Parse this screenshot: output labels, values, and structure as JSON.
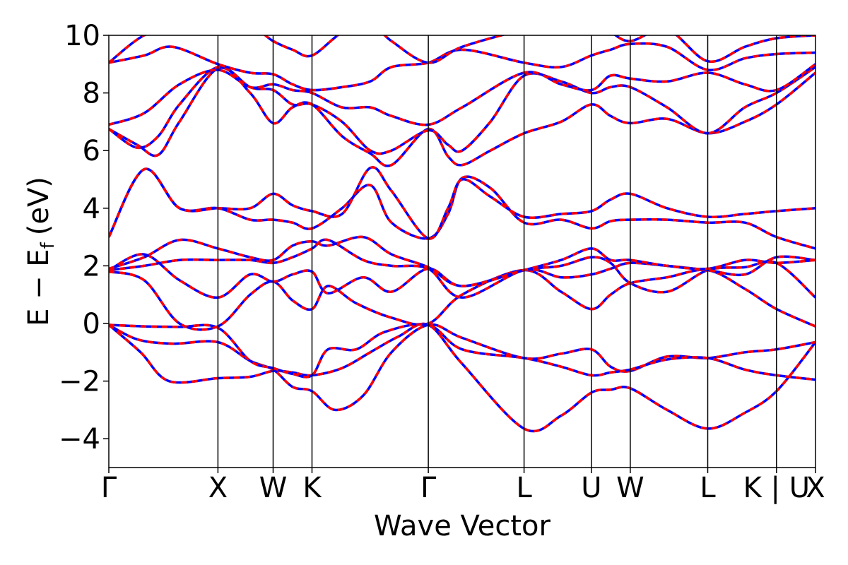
{
  "chart_data": {
    "type": "line",
    "title": "",
    "xlabel": "Wave Vector",
    "ylabel_main": "E − E",
    "ylabel_sub": "f",
    "ylabel_unit": "(eV)",
    "ylim": [
      -5,
      10
    ],
    "yticks": [
      -4,
      -2,
      0,
      2,
      4,
      6,
      8,
      10
    ],
    "ytick_labels": [
      "−4",
      "−2",
      "0",
      "2",
      "4",
      "6",
      "8",
      "10"
    ],
    "xlim": [
      0,
      1
    ],
    "kpoints": [
      {
        "label": "Γ",
        "x": 0.0
      },
      {
        "label": "X",
        "x": 0.1544
      },
      {
        "label": "W",
        "x": 0.2325
      },
      {
        "label": "K",
        "x": 0.2875
      },
      {
        "label": "Γ",
        "x": 0.4521
      },
      {
        "label": "L",
        "x": 0.5876
      },
      {
        "label": "U",
        "x": 0.6829
      },
      {
        "label": "W",
        "x": 0.7379
      },
      {
        "label": "L",
        "x": 0.8475
      },
      {
        "label": "K | U",
        "x": 0.9448
      },
      {
        "label": "X",
        "x": 1.0
      }
    ],
    "grid": false,
    "legend": "none",
    "series_style": [
      {
        "color": "#0000ff",
        "dash": false
      },
      {
        "color": "#ff0000",
        "dash": true
      }
    ],
    "series": [
      {
        "x": [
          0,
          0.045,
          0.085,
          0.1544,
          0.2,
          0.2325,
          0.26,
          0.2875,
          0.33,
          0.37,
          0.41,
          0.4521,
          0.5,
          0.5876,
          0.64,
          0.6829,
          0.71,
          0.7379,
          0.79,
          0.8475,
          0.9,
          0.9448,
          1.0
        ],
        "y": [
          -0.05,
          -1.0,
          -2.0,
          -1.9,
          -1.85,
          -1.65,
          -1.7,
          -1.8,
          -1.55,
          -1.0,
          -0.45,
          -0.05,
          -1.4,
          -3.65,
          -3.2,
          -2.4,
          -2.3,
          -2.25,
          -3.0,
          -3.65,
          -3.1,
          -2.35,
          -0.65
        ]
      },
      {
        "x": [
          0,
          0.04,
          0.09,
          0.1544,
          0.2,
          0.2325,
          0.26,
          0.2875,
          0.32,
          0.36,
          0.4,
          0.4521,
          0.5,
          0.5876,
          0.64,
          0.6829,
          0.71,
          0.7379,
          0.79,
          0.8475,
          0.9,
          0.9448,
          1.0
        ],
        "y": [
          -0.05,
          -0.55,
          -0.7,
          -0.65,
          -1.3,
          -1.6,
          -2.2,
          -2.35,
          -3.0,
          -2.5,
          -1.0,
          -0.05,
          -0.5,
          -1.2,
          -1.05,
          -0.9,
          -1.5,
          -1.65,
          -1.15,
          -1.2,
          -1.0,
          -0.9,
          -0.65
        ]
      },
      {
        "x": [
          0,
          0.05,
          0.1,
          0.1544,
          0.2,
          0.2325,
          0.26,
          0.2875,
          0.31,
          0.35,
          0.39,
          0.4521,
          0.5,
          0.5876,
          0.64,
          0.6829,
          0.71,
          0.7379,
          0.79,
          0.8475,
          0.9,
          0.9448,
          1.0
        ],
        "y": [
          -0.05,
          -0.1,
          -0.12,
          -0.15,
          -1.3,
          -1.55,
          -1.75,
          -1.8,
          -0.9,
          -0.9,
          -0.3,
          -0.05,
          -0.9,
          -1.2,
          -1.5,
          -1.8,
          -1.7,
          -1.6,
          -1.25,
          -1.2,
          -1.6,
          -1.8,
          -1.95
        ]
      },
      {
        "x": [
          0,
          0.05,
          0.1,
          0.1544,
          0.2,
          0.2325,
          0.26,
          0.2875,
          0.31,
          0.35,
          0.4,
          0.4521,
          0.5,
          0.5876,
          0.64,
          0.6829,
          0.71,
          0.7379,
          0.79,
          0.8475,
          0.9,
          0.9448,
          1.0
        ],
        "y": [
          1.8,
          1.5,
          0.0,
          -0.1,
          1.0,
          1.45,
          0.8,
          0.5,
          1.3,
          0.7,
          0.2,
          0.0,
          1.0,
          1.85,
          1.1,
          0.5,
          1.0,
          1.4,
          1.6,
          1.85,
          1.2,
          0.5,
          -0.1
        ]
      },
      {
        "x": [
          0,
          0.05,
          0.1,
          0.1544,
          0.2,
          0.2325,
          0.26,
          0.2875,
          0.31,
          0.36,
          0.4,
          0.4521,
          0.5,
          0.5876,
          0.64,
          0.6829,
          0.71,
          0.7379,
          0.79,
          0.8475,
          0.9,
          0.9448,
          1.0
        ],
        "y": [
          1.85,
          2.4,
          1.5,
          0.9,
          1.7,
          1.45,
          1.7,
          1.8,
          1.05,
          1.6,
          1.1,
          1.9,
          1.3,
          1.85,
          2.0,
          2.3,
          2.1,
          1.4,
          1.1,
          1.85,
          1.95,
          2.1,
          0.9
        ]
      },
      {
        "x": [
          0,
          0.05,
          0.1,
          0.1544,
          0.2,
          0.2325,
          0.26,
          0.2875,
          0.31,
          0.36,
          0.4,
          0.4521,
          0.5,
          0.5876,
          0.64,
          0.6829,
          0.71,
          0.7379,
          0.79,
          0.8475,
          0.9,
          0.9448,
          1.0
        ],
        "y": [
          1.85,
          2.0,
          2.2,
          2.2,
          2.2,
          2.1,
          2.3,
          2.6,
          2.9,
          2.2,
          2.0,
          1.9,
          0.9,
          1.85,
          1.6,
          1.7,
          1.9,
          2.1,
          2.0,
          1.85,
          1.7,
          2.3,
          2.2
        ]
      },
      {
        "x": [
          0,
          0.05,
          0.1,
          0.1544,
          0.2,
          0.2325,
          0.26,
          0.2875,
          0.31,
          0.36,
          0.4,
          0.4521,
          0.5,
          0.5876,
          0.64,
          0.6829,
          0.71,
          0.7379,
          0.79,
          0.8475,
          0.9,
          0.9448,
          1.0
        ],
        "y": [
          1.9,
          2.3,
          2.9,
          2.6,
          2.3,
          2.2,
          2.7,
          2.85,
          2.7,
          3.0,
          2.4,
          1.95,
          1.3,
          1.85,
          2.2,
          2.6,
          2.2,
          2.2,
          2.0,
          1.9,
          2.2,
          2.1,
          2.2
        ]
      },
      {
        "x": [
          0,
          0.05,
          0.1,
          0.1544,
          0.2,
          0.2325,
          0.26,
          0.2875,
          0.33,
          0.37,
          0.4,
          0.4521,
          0.48,
          0.5,
          0.54,
          0.5876,
          0.64,
          0.6829,
          0.71,
          0.7379,
          0.79,
          0.8475,
          0.9,
          0.9448,
          1.0
        ],
        "y": [
          3.0,
          5.35,
          4.0,
          4.0,
          3.6,
          3.6,
          3.5,
          3.3,
          4.0,
          4.8,
          3.5,
          2.95,
          3.8,
          5.05,
          4.7,
          3.5,
          3.6,
          3.3,
          3.55,
          3.6,
          3.6,
          3.5,
          3.5,
          3.0,
          2.6
        ]
      },
      {
        "x": [
          0,
          0.05,
          0.1,
          0.1544,
          0.2,
          0.2325,
          0.26,
          0.2875,
          0.33,
          0.37,
          0.4,
          0.4521,
          0.48,
          0.5,
          0.54,
          0.5876,
          0.64,
          0.6829,
          0.71,
          0.7379,
          0.79,
          0.8475,
          0.9,
          0.9448,
          1.0
        ],
        "y": [
          3.0,
          5.35,
          4.0,
          4.0,
          4.0,
          4.5,
          4.1,
          3.9,
          3.8,
          5.4,
          4.6,
          2.95,
          4.0,
          5.0,
          4.4,
          3.7,
          3.8,
          3.9,
          4.3,
          4.5,
          4.0,
          3.7,
          3.8,
          3.9,
          4.0
        ]
      },
      {
        "x": [
          0,
          0.04,
          0.07,
          0.1,
          0.1544,
          0.2,
          0.2325,
          0.26,
          0.2875,
          0.33,
          0.37,
          0.4,
          0.4521,
          0.48,
          0.5,
          0.54,
          0.5876,
          0.64,
          0.6829,
          0.71,
          0.7379,
          0.79,
          0.8475,
          0.9,
          0.9448,
          1.0
        ],
        "y": [
          6.75,
          6.2,
          5.85,
          7.0,
          8.85,
          8.0,
          6.95,
          7.5,
          7.6,
          6.5,
          5.9,
          5.5,
          6.75,
          5.8,
          5.5,
          6.0,
          6.6,
          7.0,
          7.6,
          7.2,
          6.95,
          7.1,
          6.6,
          7.0,
          7.6,
          8.7
        ]
      },
      {
        "x": [
          0,
          0.04,
          0.07,
          0.1,
          0.1544,
          0.2,
          0.2325,
          0.26,
          0.2875,
          0.33,
          0.37,
          0.4,
          0.4521,
          0.48,
          0.5,
          0.54,
          0.5876,
          0.64,
          0.6829,
          0.71,
          0.7379,
          0.79,
          0.8475,
          0.9,
          0.9448,
          1.0
        ],
        "y": [
          6.75,
          6.1,
          6.5,
          7.6,
          8.9,
          8.2,
          8.1,
          7.6,
          7.6,
          7.0,
          6.0,
          6.0,
          6.7,
          6.2,
          6.0,
          7.0,
          8.6,
          8.4,
          8.0,
          8.2,
          8.2,
          7.5,
          6.6,
          7.5,
          8.0,
          8.9
        ]
      },
      {
        "x": [
          0,
          0.05,
          0.1,
          0.1544,
          0.2,
          0.2325,
          0.26,
          0.2875,
          0.33,
          0.37,
          0.4,
          0.4521,
          0.5,
          0.5876,
          0.64,
          0.6829,
          0.71,
          0.7379,
          0.79,
          0.8475,
          0.9,
          0.9448,
          1.0
        ],
        "y": [
          6.9,
          7.3,
          8.3,
          8.8,
          8.2,
          8.3,
          8.1,
          8.0,
          7.5,
          7.5,
          7.2,
          6.9,
          7.5,
          8.7,
          8.3,
          8.1,
          8.6,
          8.5,
          8.4,
          8.7,
          8.3,
          8.1,
          9.0
        ]
      },
      {
        "x": [
          0,
          0.05,
          0.09,
          0.1544,
          0.2,
          0.2325,
          0.26,
          0.2875,
          0.33,
          0.37,
          0.4,
          0.4521,
          0.5,
          0.5876,
          0.64,
          0.6829,
          0.71,
          0.7379,
          0.79,
          0.8475,
          0.9,
          0.9448,
          1.0
        ],
        "y": [
          9.05,
          9.3,
          9.6,
          9.0,
          8.7,
          8.65,
          8.3,
          8.1,
          8.2,
          8.4,
          8.9,
          9.05,
          9.5,
          9.05,
          8.9,
          9.3,
          9.5,
          9.7,
          9.6,
          8.8,
          9.2,
          9.35,
          9.4
        ]
      },
      {
        "x": [
          0,
          0.05,
          0.1,
          0.1544,
          0.2,
          0.2325,
          0.26,
          0.2875,
          0.33,
          0.37,
          0.4,
          0.4521,
          0.5,
          0.5876,
          0.64,
          0.6829,
          0.71,
          0.7379,
          0.79,
          0.8475,
          0.9,
          0.9448,
          1.0
        ],
        "y": [
          9.05,
          10.0,
          10.3,
          10.1,
          10.3,
          9.8,
          9.5,
          9.3,
          10.1,
          10.4,
          9.8,
          9.05,
          9.6,
          10.2,
          10.4,
          10.3,
          10.1,
          9.8,
          10.2,
          9.1,
          9.6,
          9.9,
          10.0
        ]
      }
    ]
  }
}
